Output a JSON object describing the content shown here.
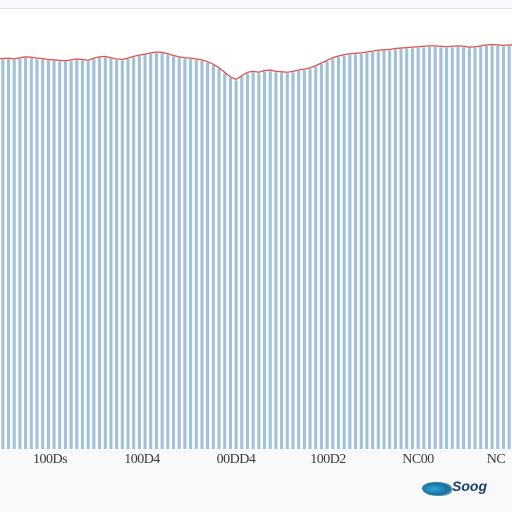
{
  "chart_data": {
    "type": "bar",
    "bar_color": "#8fb6cf",
    "line_color": "#d9534f",
    "grid": false,
    "title": "",
    "xlabel": "",
    "ylabel": "",
    "ylim": [
      0,
      100
    ],
    "x_tick_labels": [
      "100Ds",
      "100D4",
      "00DD4",
      "100D2",
      "NC00",
      "NC"
    ],
    "values": [
      88.5,
      88.6,
      88.4,
      88.7,
      88.9,
      88.8,
      88.6,
      88.5,
      88.3,
      88.2,
      88.1,
      88.0,
      88.2,
      88.4,
      88.3,
      88.1,
      88.6,
      88.9,
      89.0,
      88.7,
      88.4,
      88.3,
      88.6,
      89.0,
      89.3,
      89.5,
      89.8,
      90.0,
      89.9,
      89.6,
      89.2,
      88.9,
      88.7,
      88.6,
      88.4,
      88.2,
      87.8,
      87.2,
      86.4,
      85.4,
      84.3,
      83.8,
      84.6,
      85.4,
      85.6,
      85.4,
      85.8,
      85.9,
      85.6,
      85.5,
      85.4,
      85.6,
      85.9,
      86.1,
      86.4,
      86.9,
      87.5,
      88.1,
      88.7,
      89.1,
      89.4,
      89.6,
      89.7,
      89.8,
      90.0,
      90.2,
      90.4,
      90.5,
      90.6,
      90.8,
      90.9,
      91.0,
      91.1,
      91.2,
      91.3,
      91.4,
      91.4,
      91.3,
      91.2,
      91.3,
      91.4,
      91.3,
      91.1,
      91.2,
      91.4,
      91.6,
      91.7,
      91.6,
      91.5,
      91.6
    ]
  },
  "watermark": {
    "text": "Soog",
    "icon": "swoosh-logo-icon"
  }
}
